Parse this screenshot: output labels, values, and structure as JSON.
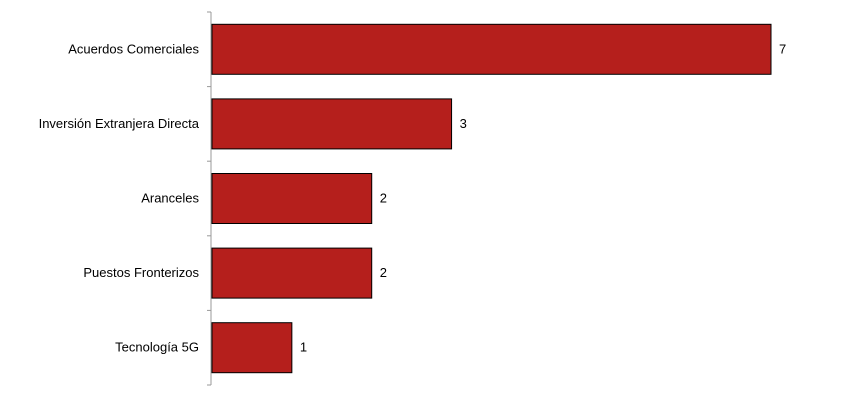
{
  "chart_data": {
    "type": "bar",
    "orientation": "horizontal",
    "categories": [
      "Acuerdos Comerciales",
      "Inversión Extranjera Directa",
      "Aranceles",
      "Puestos Fronterizos",
      "Tecnología 5G"
    ],
    "values": [
      7,
      3,
      2,
      2,
      1
    ],
    "title": "",
    "xlabel": "",
    "ylabel": "",
    "xlim": [
      0,
      7
    ],
    "grid": false,
    "legend": "none",
    "bar_color": "#b51f1c",
    "data_labels": true
  }
}
